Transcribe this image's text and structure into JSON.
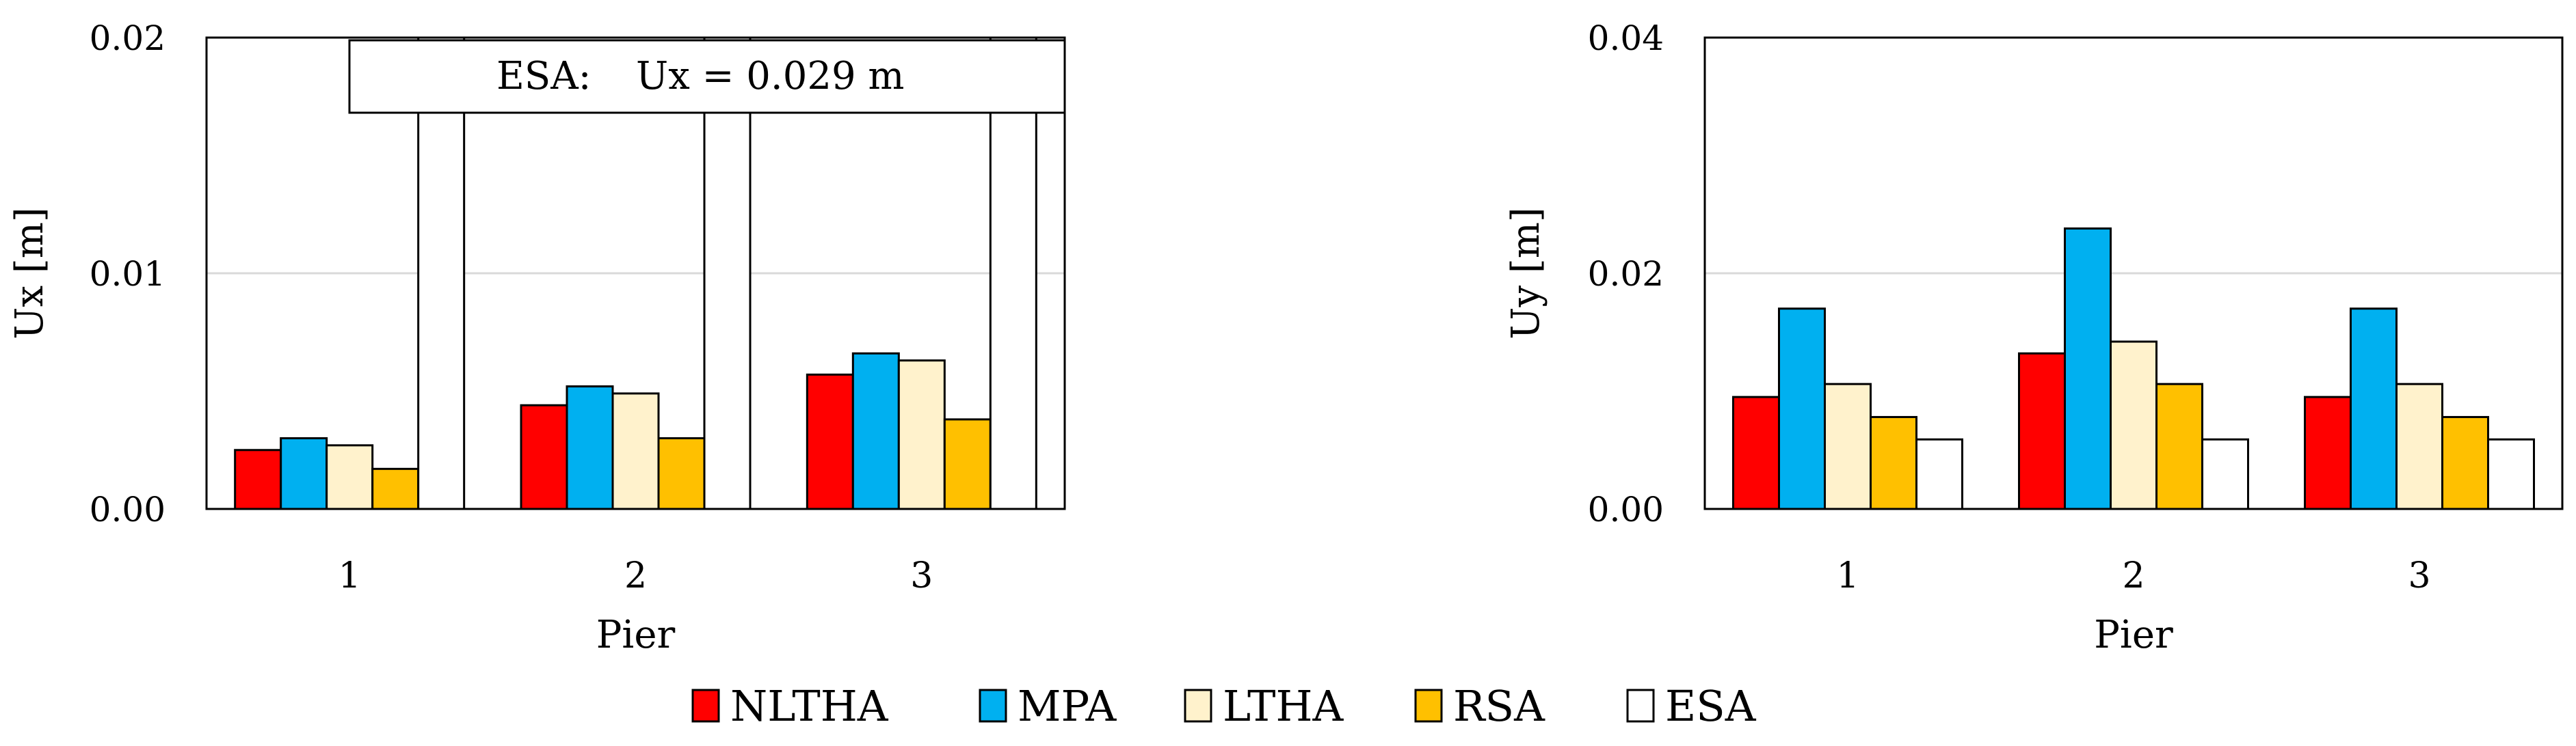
{
  "colors": {
    "NLTHA": "#ff0000",
    "MPA": "#00b0f0",
    "LTHA": "#fff2cc",
    "RSA": "#ffc000",
    "ESA": "#ffffff",
    "grid": "#d9d9d9",
    "outline": "#000000"
  },
  "legend": {
    "placement": "bottom-center",
    "items": [
      {
        "name": "NLTHA",
        "color": "#ff0000"
      },
      {
        "name": "MPA",
        "color": "#00b0f0"
      },
      {
        "name": "LTHA",
        "color": "#fff2cc"
      },
      {
        "name": "RSA",
        "color": "#ffc000"
      },
      {
        "name": "ESA",
        "color": "#ffffff"
      }
    ]
  },
  "chart_data": [
    {
      "type": "bar",
      "title": "",
      "xlabel": "Pier",
      "ylabel": "Ux [m]",
      "categories": [
        "1",
        "2",
        "3"
      ],
      "ylim": [
        0,
        0.02
      ],
      "yticks": [
        "0.00",
        "0.01",
        "0.02"
      ],
      "grid": true,
      "series": [
        {
          "name": "NLTHA",
          "values": [
            0.0025,
            0.0044,
            0.0057
          ]
        },
        {
          "name": "MPA",
          "values": [
            0.003,
            0.0052,
            0.0066
          ]
        },
        {
          "name": "LTHA",
          "values": [
            0.0027,
            0.0049,
            0.0063
          ]
        },
        {
          "name": "RSA",
          "values": [
            0.0017,
            0.003,
            0.0038
          ]
        },
        {
          "name": "ESA",
          "values": [
            0.029,
            0.029,
            0.029
          ]
        }
      ],
      "annotation": {
        "label": "ESA:",
        "text": "Ux = 0.029 m"
      }
    },
    {
      "type": "bar",
      "title": "",
      "xlabel": "Pier",
      "ylabel": "Uy [m]",
      "categories": [
        "1",
        "2",
        "3"
      ],
      "ylim": [
        0,
        0.04
      ],
      "yticks": [
        "0.00",
        "0.02",
        "0.04"
      ],
      "grid": true,
      "series": [
        {
          "name": "NLTHA",
          "values": [
            0.0095,
            0.0132,
            0.0095
          ]
        },
        {
          "name": "MPA",
          "values": [
            0.017,
            0.0238,
            0.017
          ]
        },
        {
          "name": "LTHA",
          "values": [
            0.0106,
            0.0142,
            0.0106
          ]
        },
        {
          "name": "RSA",
          "values": [
            0.0078,
            0.0106,
            0.0078
          ]
        },
        {
          "name": "ESA",
          "values": [
            0.0059,
            0.0059,
            0.0059
          ]
        }
      ]
    }
  ]
}
